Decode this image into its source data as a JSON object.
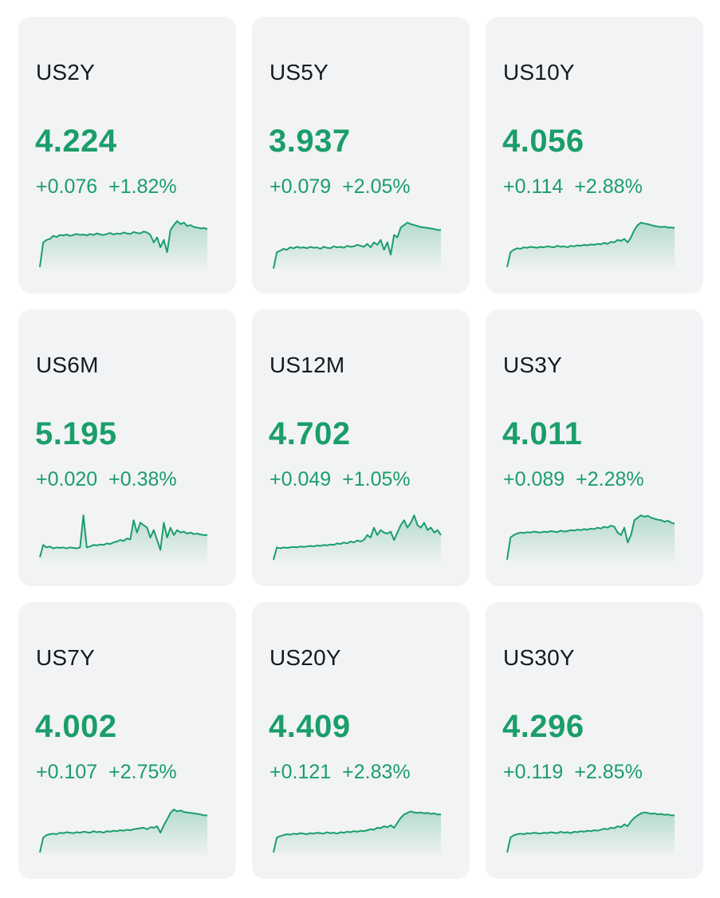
{
  "theme": {
    "up_color": "#1a9e6a",
    "card_bg": "#f2f3f5",
    "text_color": "#151a21"
  },
  "cards": [
    {
      "symbol": "US2Y",
      "price": "4.224",
      "change": "+0.076",
      "change_pct": "+1.82%",
      "trend": "up",
      "spark": [
        0.05,
        0.55,
        0.6,
        0.62,
        0.68,
        0.66,
        0.7,
        0.69,
        0.71,
        0.68,
        0.7,
        0.72,
        0.7,
        0.71,
        0.69,
        0.72,
        0.7,
        0.73,
        0.71,
        0.7,
        0.72,
        0.74,
        0.71,
        0.73,
        0.72,
        0.75,
        0.73,
        0.72,
        0.76,
        0.74,
        0.73,
        0.77,
        0.75,
        0.7,
        0.55,
        0.65,
        0.45,
        0.6,
        0.35,
        0.8,
        0.9,
        0.98,
        0.92,
        0.95,
        0.88,
        0.9,
        0.86,
        0.85,
        0.83,
        0.84,
        0.82
      ]
    },
    {
      "symbol": "US5Y",
      "price": "3.937",
      "change": "+0.079",
      "change_pct": "+2.05%",
      "trend": "up",
      "spark": [
        0.02,
        0.35,
        0.38,
        0.42,
        0.4,
        0.45,
        0.43,
        0.46,
        0.44,
        0.45,
        0.43,
        0.46,
        0.44,
        0.45,
        0.42,
        0.46,
        0.44,
        0.43,
        0.47,
        0.45,
        0.46,
        0.44,
        0.48,
        0.46,
        0.47,
        0.5,
        0.48,
        0.46,
        0.52,
        0.45,
        0.55,
        0.5,
        0.6,
        0.4,
        0.55,
        0.3,
        0.7,
        0.65,
        0.85,
        0.9,
        0.95,
        0.92,
        0.9,
        0.88,
        0.86,
        0.85,
        0.84,
        0.83,
        0.82,
        0.8,
        0.8
      ]
    },
    {
      "symbol": "US10Y",
      "price": "4.056",
      "change": "+0.114",
      "change_pct": "+2.88%",
      "trend": "up",
      "spark": [
        0.05,
        0.35,
        0.4,
        0.43,
        0.42,
        0.45,
        0.44,
        0.46,
        0.45,
        0.44,
        0.46,
        0.45,
        0.47,
        0.46,
        0.45,
        0.48,
        0.46,
        0.47,
        0.45,
        0.48,
        0.47,
        0.49,
        0.48,
        0.5,
        0.49,
        0.51,
        0.5,
        0.52,
        0.51,
        0.54,
        0.52,
        0.56,
        0.55,
        0.6,
        0.58,
        0.62,
        0.55,
        0.65,
        0.8,
        0.9,
        0.95,
        0.93,
        0.92,
        0.9,
        0.88,
        0.87,
        0.86,
        0.87,
        0.85,
        0.85,
        0.84
      ]
    },
    {
      "symbol": "US6M",
      "price": "5.195",
      "change": "+0.020",
      "change_pct": "+0.38%",
      "trend": "up",
      "spark": [
        0.1,
        0.35,
        0.3,
        0.32,
        0.28,
        0.3,
        0.29,
        0.3,
        0.28,
        0.3,
        0.29,
        0.28,
        0.3,
        0.95,
        0.3,
        0.32,
        0.35,
        0.34,
        0.36,
        0.35,
        0.38,
        0.37,
        0.4,
        0.42,
        0.45,
        0.43,
        0.48,
        0.46,
        0.85,
        0.6,
        0.8,
        0.75,
        0.7,
        0.5,
        0.65,
        0.45,
        0.25,
        0.8,
        0.5,
        0.7,
        0.55,
        0.65,
        0.6,
        0.62,
        0.58,
        0.6,
        0.57,
        0.58,
        0.56,
        0.55,
        0.55
      ]
    },
    {
      "symbol": "US12M",
      "price": "4.702",
      "change": "+0.049",
      "change_pct": "+1.05%",
      "trend": "up",
      "spark": [
        0.05,
        0.3,
        0.28,
        0.3,
        0.29,
        0.3,
        0.31,
        0.3,
        0.32,
        0.31,
        0.32,
        0.33,
        0.32,
        0.34,
        0.33,
        0.35,
        0.34,
        0.36,
        0.35,
        0.38,
        0.37,
        0.4,
        0.38,
        0.42,
        0.4,
        0.44,
        0.42,
        0.45,
        0.55,
        0.5,
        0.7,
        0.55,
        0.65,
        0.6,
        0.58,
        0.62,
        0.45,
        0.6,
        0.75,
        0.85,
        0.7,
        0.8,
        0.95,
        0.75,
        0.7,
        0.8,
        0.65,
        0.7,
        0.6,
        0.65,
        0.55
      ]
    },
    {
      "symbol": "US3Y",
      "price": "4.011",
      "change": "+0.089",
      "change_pct": "+2.28%",
      "trend": "up",
      "spark": [
        0.05,
        0.5,
        0.55,
        0.58,
        0.6,
        0.59,
        0.61,
        0.6,
        0.62,
        0.61,
        0.6,
        0.62,
        0.61,
        0.63,
        0.62,
        0.61,
        0.64,
        0.62,
        0.63,
        0.65,
        0.64,
        0.66,
        0.65,
        0.67,
        0.66,
        0.68,
        0.67,
        0.7,
        0.68,
        0.72,
        0.7,
        0.74,
        0.72,
        0.6,
        0.55,
        0.7,
        0.4,
        0.55,
        0.85,
        0.9,
        0.95,
        0.92,
        0.94,
        0.9,
        0.88,
        0.86,
        0.85,
        0.82,
        0.84,
        0.8,
        0.78
      ]
    },
    {
      "symbol": "US7Y",
      "price": "4.002",
      "change": "+0.107",
      "change_pct": "+2.75%",
      "trend": "up",
      "spark": [
        0.05,
        0.35,
        0.4,
        0.42,
        0.43,
        0.42,
        0.45,
        0.44,
        0.46,
        0.45,
        0.44,
        0.46,
        0.45,
        0.47,
        0.46,
        0.45,
        0.48,
        0.46,
        0.47,
        0.45,
        0.48,
        0.47,
        0.49,
        0.48,
        0.5,
        0.49,
        0.51,
        0.5,
        0.52,
        0.53,
        0.54,
        0.55,
        0.52,
        0.56,
        0.55,
        0.58,
        0.45,
        0.6,
        0.72,
        0.85,
        0.92,
        0.88,
        0.9,
        0.87,
        0.86,
        0.85,
        0.84,
        0.83,
        0.82,
        0.8,
        0.8
      ]
    },
    {
      "symbol": "US20Y",
      "price": "4.409",
      "change": "+0.121",
      "change_pct": "+2.83%",
      "trend": "up",
      "spark": [
        0.05,
        0.35,
        0.38,
        0.4,
        0.42,
        0.41,
        0.43,
        0.42,
        0.44,
        0.43,
        0.42,
        0.44,
        0.43,
        0.45,
        0.44,
        0.43,
        0.46,
        0.44,
        0.45,
        0.43,
        0.46,
        0.45,
        0.47,
        0.46,
        0.48,
        0.47,
        0.49,
        0.48,
        0.5,
        0.52,
        0.51,
        0.55,
        0.54,
        0.58,
        0.56,
        0.6,
        0.55,
        0.65,
        0.75,
        0.82,
        0.85,
        0.88,
        0.86,
        0.85,
        0.86,
        0.84,
        0.85,
        0.83,
        0.84,
        0.82,
        0.82
      ]
    },
    {
      "symbol": "US30Y",
      "price": "4.296",
      "change": "+0.119",
      "change_pct": "+2.85%",
      "trend": "up",
      "spark": [
        0.05,
        0.35,
        0.4,
        0.42,
        0.43,
        0.42,
        0.44,
        0.43,
        0.45,
        0.44,
        0.43,
        0.45,
        0.44,
        0.46,
        0.45,
        0.44,
        0.47,
        0.45,
        0.46,
        0.44,
        0.47,
        0.46,
        0.48,
        0.47,
        0.49,
        0.48,
        0.5,
        0.49,
        0.51,
        0.53,
        0.52,
        0.55,
        0.54,
        0.58,
        0.56,
        0.62,
        0.58,
        0.68,
        0.75,
        0.8,
        0.84,
        0.86,
        0.85,
        0.83,
        0.84,
        0.82,
        0.83,
        0.81,
        0.82,
        0.8,
        0.8
      ]
    }
  ]
}
